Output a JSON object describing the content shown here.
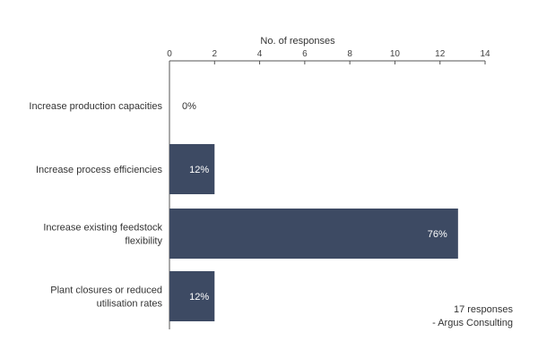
{
  "chart_data": {
    "type": "bar",
    "orientation": "horizontal",
    "title": "",
    "xlabel": "No. of responses",
    "ylabel": "",
    "xlim": [
      0,
      14
    ],
    "x_ticks": [
      0,
      2,
      4,
      6,
      8,
      10,
      12,
      14
    ],
    "categories": [
      [
        "Increase production capacities"
      ],
      [
        "Increase process efficiencies"
      ],
      [
        "Increase existing feedstock",
        "flexibility"
      ],
      [
        "Plant closures or reduced",
        "utilisation rates"
      ]
    ],
    "values": [
      0,
      2,
      12.8,
      2
    ],
    "data_labels": [
      "0%",
      "12%",
      "76%",
      "12%"
    ],
    "bar_color": "#3d4a63",
    "grid": false
  },
  "notes": {
    "line1": "17 responses",
    "line2": "- Argus Consulting"
  }
}
